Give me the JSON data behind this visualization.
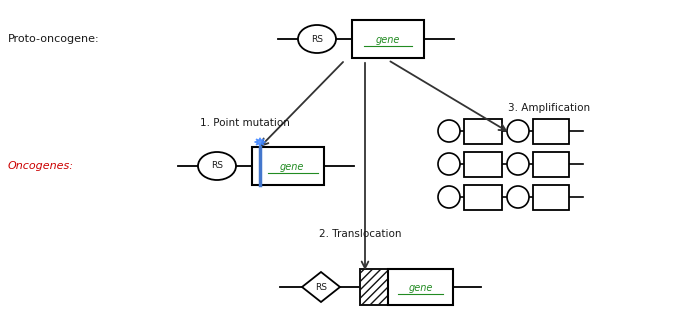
{
  "bg_color": "#ffffff",
  "title_proto": "Proto-oncogene:",
  "title_onco": "Oncogenes:",
  "label_1": "1. Point mutation",
  "label_2": "2. Translocation",
  "label_3": "3. Amplification",
  "text_color": "#1a1a1a",
  "gene_text_color": "#228B22",
  "oncogene_text_color": "#cc0000",
  "arrow_color": "#333333",
  "box_edge": "#111111",
  "blue_line_color": "#4477cc",
  "spark_color": "#4488ff"
}
